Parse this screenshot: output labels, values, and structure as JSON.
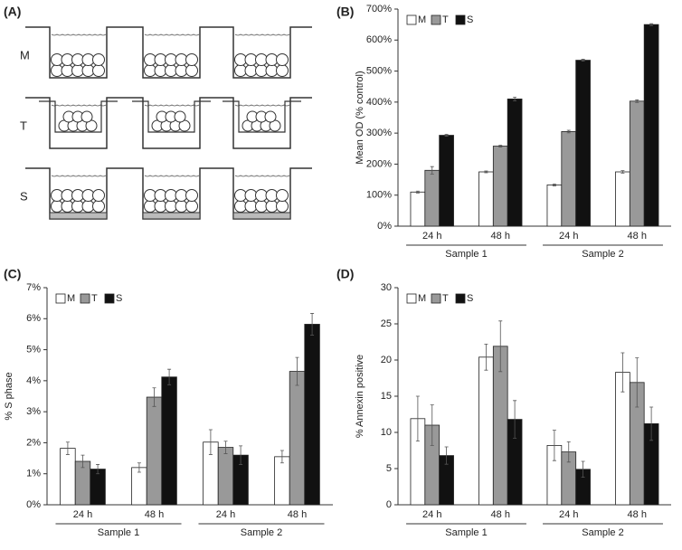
{
  "panel_a": {
    "panel_label": "(A)",
    "rows": [
      "M",
      "T",
      "S"
    ]
  },
  "chart_data": [
    {
      "type": "bar",
      "panel_label": "(B)",
      "y_label": "Mean OD (% control)",
      "categories": [
        "24 h",
        "48 h",
        "24 h",
        "48 h"
      ],
      "groups": [
        "Sample 1",
        "Sample 2"
      ],
      "series": [
        {
          "name": "M",
          "color": "#ffffff",
          "values": [
            110,
            175,
            133,
            175
          ],
          "errors": [
            3,
            3,
            3,
            4
          ]
        },
        {
          "name": "T",
          "color": "#999999",
          "values": [
            180,
            258,
            305,
            403
          ],
          "errors": [
            12,
            3,
            4,
            4
          ]
        },
        {
          "name": "S",
          "color": "#111111",
          "values": [
            293,
            410,
            535,
            650
          ],
          "errors": [
            3,
            6,
            3,
            3
          ]
        }
      ],
      "ylim": [
        0,
        700
      ],
      "yticks": [
        {
          "value": 0,
          "label": "0%"
        },
        {
          "value": 100,
          "label": "100%"
        },
        {
          "value": 200,
          "label": "200%"
        },
        {
          "value": 300,
          "label": "300%"
        },
        {
          "value": 400,
          "label": "400%"
        },
        {
          "value": 500,
          "label": "500%"
        },
        {
          "value": 600,
          "label": "600%"
        },
        {
          "value": 700,
          "label": "700%"
        }
      ]
    },
    {
      "type": "bar",
      "panel_label": "(C)",
      "y_label": "% S phase",
      "categories": [
        "24 h",
        "48 h",
        "24 h",
        "48 h"
      ],
      "groups": [
        "Sample 1",
        "Sample 2"
      ],
      "series": [
        {
          "name": "M",
          "color": "#ffffff",
          "values": [
            1.82,
            1.2,
            2.02,
            1.55
          ],
          "errors": [
            0.2,
            0.15,
            0.4,
            0.2
          ]
        },
        {
          "name": "T",
          "color": "#999999",
          "values": [
            1.4,
            3.47,
            1.85,
            4.3
          ],
          "errors": [
            0.2,
            0.3,
            0.2,
            0.45
          ]
        },
        {
          "name": "S",
          "color": "#111111",
          "values": [
            1.15,
            4.12,
            1.6,
            5.82
          ],
          "errors": [
            0.15,
            0.25,
            0.3,
            0.35
          ]
        }
      ],
      "ylim": [
        0,
        7
      ],
      "yticks": [
        {
          "value": 0,
          "label": "0%"
        },
        {
          "value": 1,
          "label": "1%"
        },
        {
          "value": 2,
          "label": "2%"
        },
        {
          "value": 3,
          "label": "3%"
        },
        {
          "value": 4,
          "label": "4%"
        },
        {
          "value": 5,
          "label": "5%"
        },
        {
          "value": 6,
          "label": "6%"
        },
        {
          "value": 7,
          "label": "7%"
        }
      ]
    },
    {
      "type": "bar",
      "panel_label": "(D)",
      "y_label": "% Annexin positive",
      "categories": [
        "24 h",
        "48 h",
        "24 h",
        "48 h"
      ],
      "groups": [
        "Sample 1",
        "Sample 2"
      ],
      "series": [
        {
          "name": "M",
          "color": "#ffffff",
          "values": [
            11.9,
            20.4,
            8.2,
            18.3
          ],
          "errors": [
            3.1,
            1.8,
            2.1,
            2.7
          ]
        },
        {
          "name": "T",
          "color": "#999999",
          "values": [
            11,
            21.9,
            7.3,
            16.9
          ],
          "errors": [
            2.8,
            3.5,
            1.4,
            3.4
          ]
        },
        {
          "name": "S",
          "color": "#111111",
          "values": [
            6.8,
            11.8,
            4.9,
            11.2
          ],
          "errors": [
            1.2,
            2.6,
            1.1,
            2.3
          ]
        }
      ],
      "ylim": [
        0,
        30
      ],
      "yticks": [
        0,
        5,
        10,
        15,
        20,
        25,
        30
      ]
    }
  ]
}
